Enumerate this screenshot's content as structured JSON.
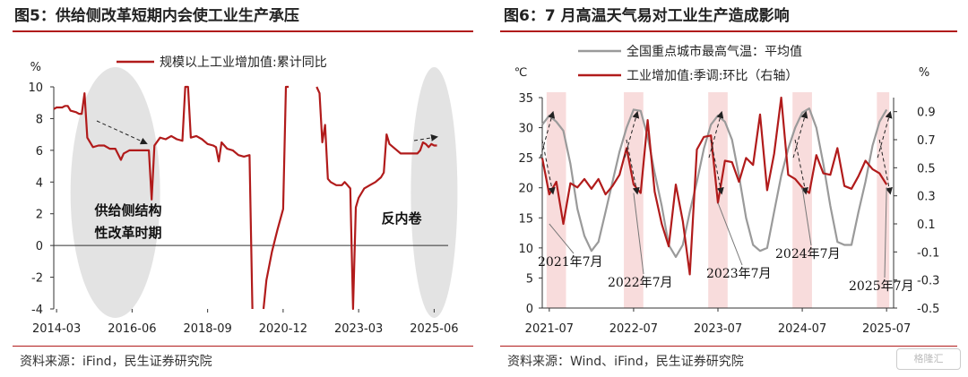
{
  "panels": {
    "left": {
      "title": "图5：供给侧改革短期内会使工业生产承压",
      "source": "资料来源：iFind，民生证券研究院"
    },
    "right": {
      "title": "图6：7 月高温天气易对工业生产造成影响",
      "source": "资料来源：Wind、iFind，民生证券研究院"
    }
  },
  "watermark": "格隆汇",
  "chart_data": [
    {
      "type": "line",
      "legend_position": "top",
      "y_unit": "%",
      "ylim": [
        -4,
        10
      ],
      "yticks": [
        -4,
        -2,
        0,
        2,
        4,
        6,
        8,
        10
      ],
      "x_ticks": [
        "2014-03",
        "2016-06",
        "2018-09",
        "2020-12",
        "2023-03",
        "2025-06"
      ],
      "series": [
        {
          "name": "规模以上工业增加值:累计同比",
          "color": "#b11b1b",
          "points": [
            [
              "2014-02",
              8.6
            ],
            [
              "2014-03",
              8.7
            ],
            [
              "2014-05",
              8.7
            ],
            [
              "2014-06",
              8.8
            ],
            [
              "2014-07",
              8.8
            ],
            [
              "2014-08",
              8.5
            ],
            [
              "2014-10",
              8.4
            ],
            [
              "2014-11",
              8.3
            ],
            [
              "2014-12",
              8.3
            ],
            [
              "2015-01",
              9.6
            ],
            [
              "2015-02",
              6.8
            ],
            [
              "2015-04",
              6.2
            ],
            [
              "2015-06",
              6.3
            ],
            [
              "2015-08",
              6.3
            ],
            [
              "2015-10",
              6.1
            ],
            [
              "2015-12",
              6.1
            ],
            [
              "2016-02",
              5.4
            ],
            [
              "2016-03",
              5.8
            ],
            [
              "2016-05",
              6.0
            ],
            [
              "2016-08",
              6.0
            ],
            [
              "2016-11",
              6.0
            ],
            [
              "2016-12",
              6.0
            ],
            [
              "2017-01",
              2.9
            ],
            [
              "2017-02",
              6.3
            ],
            [
              "2017-04",
              6.8
            ],
            [
              "2017-06",
              6.7
            ],
            [
              "2017-08",
              6.9
            ],
            [
              "2017-10",
              6.7
            ],
            [
              "2017-12",
              6.6
            ],
            [
              "2018-01",
              10.0
            ],
            [
              "2018-02",
              10.0
            ],
            [
              "2018-03",
              6.8
            ],
            [
              "2018-05",
              6.9
            ],
            [
              "2018-07",
              6.7
            ],
            [
              "2018-09",
              6.4
            ],
            [
              "2018-11",
              6.3
            ],
            [
              "2018-12",
              6.2
            ],
            [
              "2019-01",
              5.3
            ],
            [
              "2019-02",
              6.5
            ],
            [
              "2019-04",
              6.1
            ],
            [
              "2019-06",
              6.0
            ],
            [
              "2019-08",
              5.7
            ],
            [
              "2019-10",
              5.6
            ],
            [
              "2019-12",
              5.7
            ],
            [
              "2020-01",
              -4.0
            ]
          ]
        },
        {
          "name": "规模以上工业增加值:累计同比",
          "color": "#b11b1b",
          "points": [
            [
              "2020-05",
              -4.0
            ],
            [
              "2020-06",
              -2.2
            ],
            [
              "2020-08",
              -0.4
            ],
            [
              "2020-10",
              1.0
            ],
            [
              "2020-12",
              2.3
            ],
            [
              "2021-01",
              10.0
            ],
            [
              "2021-02",
              10.0
            ]
          ]
        },
        {
          "name": "规模以上工业增加值:累计同比",
          "color": "#b11b1b",
          "points": [
            [
              "2021-12",
              10.0
            ],
            [
              "2022-01",
              9.6
            ],
            [
              "2022-02",
              6.5
            ],
            [
              "2022-03",
              7.6
            ],
            [
              "2022-04",
              4.2
            ],
            [
              "2022-05",
              4.0
            ],
            [
              "2022-07",
              3.8
            ],
            [
              "2022-09",
              3.8
            ],
            [
              "2022-10",
              4.0
            ],
            [
              "2022-11",
              3.8
            ],
            [
              "2022-12",
              3.6
            ],
            [
              "2023-01",
              -4.0
            ],
            [
              "2023-02",
              2.4
            ],
            [
              "2023-03",
              3.0
            ],
            [
              "2023-05",
              3.6
            ],
            [
              "2023-07",
              3.8
            ],
            [
              "2023-09",
              4.0
            ],
            [
              "2023-11",
              4.3
            ],
            [
              "2023-12",
              4.6
            ],
            [
              "2024-01",
              7.0
            ],
            [
              "2024-02",
              6.4
            ],
            [
              "2024-04",
              6.1
            ],
            [
              "2024-06",
              5.8
            ],
            [
              "2024-08",
              5.8
            ],
            [
              "2024-10",
              5.8
            ],
            [
              "2024-12",
              5.8
            ],
            [
              "2025-01",
              6.0
            ],
            [
              "2025-02",
              6.5
            ],
            [
              "2025-03",
              6.4
            ],
            [
              "2025-04",
              6.2
            ],
            [
              "2025-05",
              6.4
            ],
            [
              "2025-06",
              6.3
            ],
            [
              "2025-07",
              6.3
            ]
          ]
        }
      ],
      "annotations": [
        {
          "text": "供给侧结构",
          "line": 1
        },
        {
          "text": "性改革时期",
          "line": 2
        },
        {
          "text": "反内卷",
          "line": 1
        }
      ]
    },
    {
      "type": "line",
      "legend_position": "top",
      "y_unit": "℃",
      "y2_unit": "%",
      "ylim": [
        0,
        35
      ],
      "yticks": [
        0,
        5,
        10,
        15,
        20,
        25,
        30,
        35
      ],
      "y2lim": [
        -0.5,
        1.0
      ],
      "y2ticks": [
        -0.5,
        -0.3,
        -0.1,
        0.1,
        0.3,
        0.5,
        0.7,
        0.9
      ],
      "x_ticks": [
        "2021-07",
        "2022-07",
        "2023-07",
        "2024-07",
        "2025-07"
      ],
      "shaded_periods": [
        [
          "2021-07",
          "2021-09"
        ],
        [
          "2022-06",
          "2022-08"
        ],
        [
          "2023-06",
          "2023-08"
        ],
        [
          "2024-06",
          "2024-08"
        ],
        [
          "2025-06",
          "2025-07"
        ]
      ],
      "series": [
        {
          "name": "全国重点城市最高气温：平均值",
          "color": "#9a9a9a",
          "axis": "left",
          "points": [
            [
              "2021-06",
              30.5
            ],
            [
              "2021-07",
              32.0
            ],
            [
              "2021-08",
              31.0
            ],
            [
              "2021-09",
              29.5
            ],
            [
              "2021-10",
              24.0
            ],
            [
              "2021-11",
              16.5
            ],
            [
              "2021-12",
              12.0
            ],
            [
              "2022-01",
              9.5
            ],
            [
              "2022-02",
              11.0
            ],
            [
              "2022-03",
              16.0
            ],
            [
              "2022-04",
              21.0
            ],
            [
              "2022-05",
              26.0
            ],
            [
              "2022-06",
              30.0
            ],
            [
              "2022-07",
              33.0
            ],
            [
              "2022-08",
              32.8
            ],
            [
              "2022-09",
              28.5
            ],
            [
              "2022-10",
              22.5
            ],
            [
              "2022-11",
              17.0
            ],
            [
              "2022-12",
              10.5
            ],
            [
              "2023-01",
              8.5
            ],
            [
              "2023-02",
              10.5
            ],
            [
              "2023-03",
              16.0
            ],
            [
              "2023-04",
              21.0
            ],
            [
              "2023-05",
              26.5
            ],
            [
              "2023-06",
              30.5
            ],
            [
              "2023-07",
              32.0
            ],
            [
              "2023-08",
              31.0
            ],
            [
              "2023-09",
              28.0
            ],
            [
              "2023-10",
              22.0
            ],
            [
              "2023-11",
              15.0
            ],
            [
              "2023-12",
              10.5
            ],
            [
              "2024-01",
              9.5
            ],
            [
              "2024-02",
              10.0
            ],
            [
              "2024-03",
              16.0
            ],
            [
              "2024-04",
              22.0
            ],
            [
              "2024-05",
              26.5
            ],
            [
              "2024-06",
              30.0
            ],
            [
              "2024-07",
              32.5
            ],
            [
              "2024-08",
              33.2
            ],
            [
              "2024-09",
              30.0
            ],
            [
              "2024-10",
              24.0
            ],
            [
              "2024-11",
              17.0
            ],
            [
              "2024-12",
              11.0
            ],
            [
              "2025-01",
              10.5
            ],
            [
              "2025-02",
              10.5
            ],
            [
              "2025-03",
              16.0
            ],
            [
              "2025-04",
              21.0
            ],
            [
              "2025-05",
              27.0
            ],
            [
              "2025-06",
              31.0
            ],
            [
              "2025-07",
              33.0
            ]
          ]
        },
        {
          "name": "工业增加值:季调:环比（右轴）",
          "color": "#b11b1b",
          "axis": "right",
          "points": [
            [
              "2021-06",
              0.57
            ],
            [
              "2021-07",
              0.31
            ],
            [
              "2021-08",
              0.4
            ],
            [
              "2021-09",
              0.1
            ],
            [
              "2021-10",
              0.39
            ],
            [
              "2021-11",
              0.36
            ],
            [
              "2021-12",
              0.42
            ],
            [
              "2022-01",
              0.35
            ],
            [
              "2022-02",
              0.42
            ],
            [
              "2022-03",
              0.31
            ],
            [
              "2022-04",
              0.37
            ],
            [
              "2022-05",
              0.45
            ],
            [
              "2022-06",
              0.64
            ],
            [
              "2022-07",
              0.38
            ],
            [
              "2022-08",
              0.32
            ],
            [
              "2022-09",
              0.84
            ],
            [
              "2022-10",
              0.33
            ],
            [
              "2022-11",
              0.1
            ],
            [
              "2022-12",
              -0.06
            ],
            [
              "2023-01",
              0.38
            ],
            [
              "2023-02",
              0.12
            ],
            [
              "2023-03",
              -0.26
            ],
            [
              "2023-04",
              0.63
            ],
            [
              "2023-05",
              0.72
            ],
            [
              "2023-06",
              0.73
            ],
            [
              "2023-07",
              0.25
            ],
            [
              "2023-08",
              0.55
            ],
            [
              "2023-09",
              0.54
            ],
            [
              "2023-10",
              0.4
            ],
            [
              "2023-11",
              0.57
            ],
            [
              "2023-12",
              0.52
            ],
            [
              "2024-01",
              0.88
            ],
            [
              "2024-02",
              0.34
            ],
            [
              "2024-03",
              0.6
            ],
            [
              "2024-04",
              1.0
            ],
            [
              "2024-05",
              0.45
            ],
            [
              "2024-06",
              0.42
            ],
            [
              "2024-07",
              0.36
            ],
            [
              "2024-08",
              0.32
            ],
            [
              "2024-09",
              0.59
            ],
            [
              "2024-10",
              0.46
            ],
            [
              "2024-11",
              0.45
            ],
            [
              "2024-12",
              0.64
            ],
            [
              "2025-01",
              0.37
            ],
            [
              "2025-02",
              0.35
            ],
            [
              "2025-03",
              0.44
            ],
            [
              "2025-04",
              0.55
            ],
            [
              "2025-05",
              0.49
            ],
            [
              "2025-06",
              0.46
            ],
            [
              "2025-07",
              0.38
            ]
          ]
        }
      ],
      "annotations": [
        "2021年7月",
        "2022年7月",
        "2023年7月",
        "2024年7月",
        "2025年7月"
      ]
    }
  ]
}
